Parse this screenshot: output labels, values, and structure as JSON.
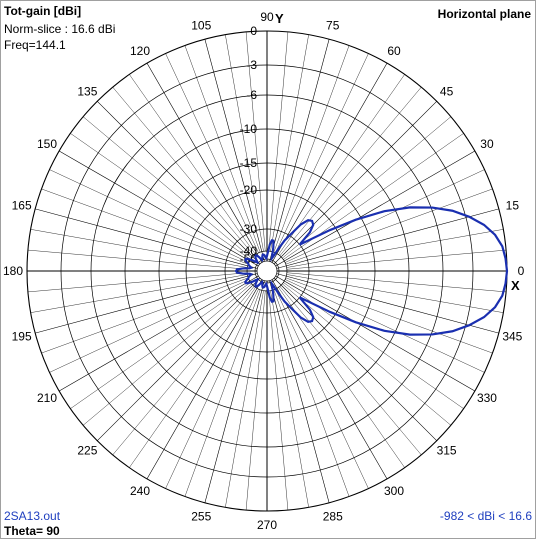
{
  "header": {
    "gain_title": "Tot-gain [dBi]",
    "norm_slice": "Norm-slice : 16.6 dBi",
    "freq": "Freq=144.1",
    "plane": "Horizontal plane"
  },
  "footer": {
    "filename": "2SA13.out",
    "theta": "Theta= 90",
    "range": "-982 < dBi < 16.6"
  },
  "axes": {
    "y_label": "Y",
    "x_label": "X"
  },
  "colors": {
    "pattern": "#1a2fb0",
    "grid": "#000000",
    "footer_text": "#1f3fbf"
  },
  "chart_data": {
    "type": "polar-line",
    "r_scale": "dB (nonlinear radial ticks)",
    "r_ticks": [
      0,
      -3,
      -6,
      -10,
      -15,
      -20,
      -30,
      -40,
      -50
    ],
    "angle_ticks": [
      0,
      15,
      30,
      45,
      60,
      75,
      90,
      105,
      120,
      135,
      150,
      165,
      180,
      195,
      210,
      225,
      240,
      255,
      270,
      285,
      300,
      315,
      330,
      345
    ],
    "angle_step_grid": 5,
    "series": [
      {
        "points": [
          [
            0,
            0
          ],
          [
            3,
            -0.1
          ],
          [
            6,
            -0.3
          ],
          [
            9,
            -0.8
          ],
          [
            12,
            -1.6
          ],
          [
            15,
            -2.7
          ],
          [
            18,
            -4.1
          ],
          [
            21,
            -5.9
          ],
          [
            24,
            -8.3
          ],
          [
            27,
            -11.5
          ],
          [
            30,
            -16
          ],
          [
            33,
            -21.5
          ],
          [
            36,
            -27
          ],
          [
            39,
            -30
          ],
          [
            42,
            -26
          ],
          [
            45,
            -24
          ],
          [
            48,
            -23.5
          ],
          [
            51,
            -24
          ],
          [
            54,
            -26
          ],
          [
            57,
            -29.5
          ],
          [
            60,
            -33
          ],
          [
            63,
            -38
          ],
          [
            66,
            -44
          ],
          [
            69,
            -48
          ],
          [
            72,
            -44
          ],
          [
            75,
            -38
          ],
          [
            78,
            -35
          ],
          [
            81,
            -35
          ],
          [
            84,
            -37
          ],
          [
            87,
            -41
          ],
          [
            90,
            -46
          ],
          [
            93,
            -49
          ],
          [
            96,
            -48
          ],
          [
            99,
            -45
          ],
          [
            102,
            -44
          ],
          [
            105,
            -44
          ],
          [
            108,
            -46
          ],
          [
            111,
            -49
          ],
          [
            114,
            -50
          ],
          [
            117,
            -48
          ],
          [
            120,
            -45
          ],
          [
            123,
            -42
          ],
          [
            126,
            -41
          ],
          [
            129,
            -42
          ],
          [
            132,
            -44
          ],
          [
            135,
            -47
          ],
          [
            138,
            -49
          ],
          [
            141,
            -47
          ],
          [
            144,
            -42
          ],
          [
            147,
            -39
          ],
          [
            150,
            -38
          ],
          [
            153,
            -38
          ],
          [
            156,
            -39
          ],
          [
            159,
            -40
          ],
          [
            162,
            -41
          ],
          [
            165,
            -43
          ],
          [
            168,
            -45
          ],
          [
            171,
            -43
          ],
          [
            174,
            -38
          ],
          [
            177,
            -35.5
          ],
          [
            180,
            -35
          ]
        ],
        "mirror_about_deg": 0
      }
    ]
  }
}
